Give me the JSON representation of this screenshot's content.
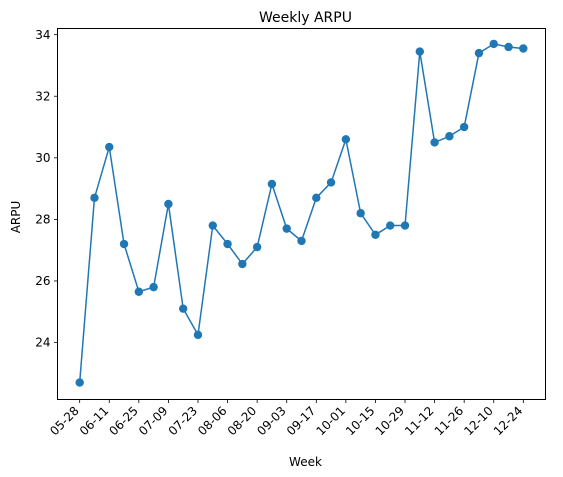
{
  "chart_data": {
    "type": "line",
    "title": "Weekly ARPU",
    "xlabel": "Week",
    "ylabel": "ARPU",
    "x": [
      "05-28",
      "06-04",
      "06-11",
      "06-18",
      "06-25",
      "07-02",
      "07-09",
      "07-16",
      "07-23",
      "07-30",
      "08-06",
      "08-13",
      "08-20",
      "08-27",
      "09-03",
      "09-10",
      "09-17",
      "09-24",
      "10-01",
      "10-08",
      "10-15",
      "10-22",
      "10-29",
      "11-05",
      "11-12",
      "11-19",
      "11-26",
      "12-03",
      "12-10",
      "12-17",
      "12-24"
    ],
    "x_tick_labels": [
      "05-28",
      "06-11",
      "06-25",
      "07-09",
      "07-23",
      "08-06",
      "08-20",
      "09-03",
      "09-17",
      "10-01",
      "10-15",
      "10-29",
      "11-12",
      "11-26",
      "12-10",
      "12-24"
    ],
    "y_tick_labels": [
      "24",
      "26",
      "28",
      "30",
      "32",
      "34"
    ],
    "y_ticks": [
      24,
      26,
      28,
      30,
      32,
      34
    ],
    "ylim": [
      22.15,
      34.2
    ],
    "grid": false,
    "legend": "none",
    "series": [
      {
        "values": [
          22.7,
          28.7,
          30.35,
          27.2,
          25.65,
          25.8,
          28.5,
          25.1,
          24.25,
          27.8,
          27.2,
          26.55,
          27.1,
          29.15,
          27.7,
          27.3,
          28.7,
          29.2,
          30.6,
          28.2,
          27.5,
          27.8,
          27.8,
          33.45,
          30.5,
          30.7,
          31.0,
          33.4,
          33.7,
          33.6,
          33.55
        ],
        "color": "#1f77b4"
      }
    ]
  }
}
